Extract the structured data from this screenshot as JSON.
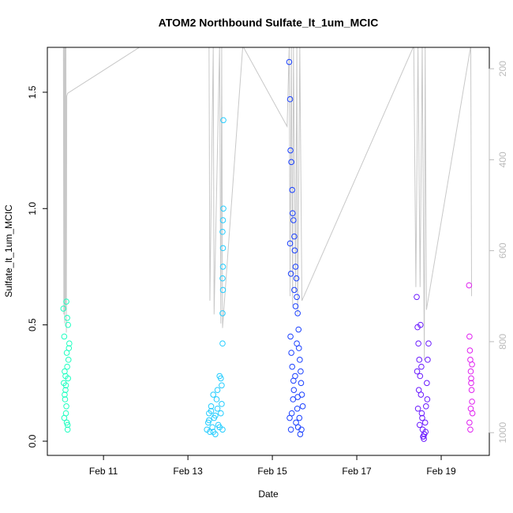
{
  "chart_data": {
    "type": "scatter",
    "title": "ATOM2 Northbound Sulfate_lt_1um_MCIC",
    "x_label": "Date",
    "y_label": "Sulfate_lt_1um_MCIC",
    "xlim": [
      9.67,
      20.14
    ],
    "xticks": [
      {
        "value": 11,
        "label": "Feb 11"
      },
      {
        "value": 13,
        "label": "Feb 13"
      },
      {
        "value": 15,
        "label": "Feb 15"
      },
      {
        "value": 17,
        "label": "Feb 17"
      },
      {
        "value": 19,
        "label": "Feb 19"
      }
    ],
    "ylim": [
      -0.061,
      1.693
    ],
    "yticks": [
      {
        "value": 0,
        "label": "0.0"
      },
      {
        "value": 0.5,
        "label": "0.5"
      },
      {
        "value": 1,
        "label": "1.0"
      },
      {
        "value": 1.5,
        "label": "1.5"
      }
    ],
    "y2lim": [
      1050,
      153
    ],
    "y2ticks": [
      200,
      400,
      600,
      800,
      1000
    ],
    "series": [
      {
        "type": "scatter",
        "color": "#1effc0",
        "x": [
          10.05,
          10.07,
          10.08,
          10.1,
          10.12,
          10.14,
          10.16,
          10.18,
          10.06,
          10.09,
          10.11,
          10.13,
          10.15,
          10.17,
          10.1,
          10.08,
          10.12,
          10.14,
          10.16,
          10.19,
          10.07,
          10.11,
          10.13,
          10.15
        ],
        "values": [
          0.57,
          0.45,
          0.3,
          0.22,
          0.6,
          0.53,
          0.5,
          0.4,
          0.25,
          0.18,
          0.12,
          0.08,
          0.05,
          0.35,
          0.28,
          0.2,
          0.15,
          0.32,
          0.27,
          0.42,
          0.1,
          0.24,
          0.38,
          0.07
        ]
      },
      {
        "type": "scatter",
        "color": "#22ccff",
        "x": [
          13.45,
          13.48,
          13.5,
          13.52,
          13.55,
          13.58,
          13.6,
          13.62,
          13.65,
          13.68,
          13.7,
          13.72,
          13.75,
          13.78,
          13.8,
          13.82,
          13.5,
          13.55,
          13.6,
          13.65,
          13.7,
          13.75,
          13.78,
          13.8,
          13.82,
          13.82,
          13.83,
          13.82,
          13.83,
          13.83,
          13.82,
          13.83,
          13.84,
          13.84
        ],
        "values": [
          0.05,
          0.08,
          0.12,
          0.04,
          0.15,
          0.06,
          0.2,
          0.1,
          0.03,
          0.18,
          0.22,
          0.07,
          0.28,
          0.12,
          0.16,
          0.05,
          0.09,
          0.13,
          0.04,
          0.11,
          0.14,
          0.06,
          0.27,
          0.24,
          0.42,
          0.55,
          0.65,
          0.7,
          0.75,
          0.83,
          0.9,
          0.95,
          1.0,
          1.38
        ]
      },
      {
        "type": "scatter",
        "color": "#1a40ff",
        "x": [
          15.4,
          15.42,
          15.43,
          15.45,
          15.47,
          15.48,
          15.5,
          15.52,
          15.53,
          15.55,
          15.57,
          15.58,
          15.6,
          15.62,
          15.63,
          15.65,
          15.67,
          15.68,
          15.7,
          15.72,
          15.41,
          15.44,
          15.46,
          15.49,
          15.51,
          15.54,
          15.56,
          15.59,
          15.61,
          15.64,
          15.66,
          15.69,
          15.43,
          15.45,
          15.47,
          15.5,
          15.52,
          15.55,
          15.58,
          15.6,
          15.42,
          15.44
        ],
        "values": [
          1.63,
          1.47,
          1.25,
          1.2,
          1.08,
          0.98,
          0.95,
          0.88,
          0.82,
          0.75,
          0.7,
          0.62,
          0.55,
          0.48,
          0.4,
          0.35,
          0.3,
          0.25,
          0.2,
          0.15,
          0.1,
          0.05,
          0.12,
          0.18,
          0.22,
          0.28,
          0.08,
          0.14,
          0.06,
          0.1,
          0.03,
          0.05,
          0.45,
          0.38,
          0.32,
          0.26,
          0.65,
          0.58,
          0.42,
          0.19,
          0.85,
          0.72
        ]
      },
      {
        "type": "scatter",
        "color": "#6a1aff",
        "x": [
          18.42,
          18.44,
          18.46,
          18.48,
          18.5,
          18.52,
          18.54,
          18.56,
          18.58,
          18.6,
          18.62,
          18.64,
          18.66,
          18.68,
          18.7,
          18.43,
          18.47,
          18.51,
          18.55,
          18.59,
          18.63,
          18.67,
          18.45,
          18.49,
          18.53,
          18.57
        ],
        "values": [
          0.62,
          0.49,
          0.42,
          0.35,
          0.28,
          0.2,
          0.12,
          0.05,
          0.02,
          0.03,
          0.08,
          0.15,
          0.25,
          0.35,
          0.42,
          0.3,
          0.22,
          0.5,
          0.1,
          0.01,
          0.04,
          0.18,
          0.14,
          0.07,
          0.32,
          0.02
        ]
      },
      {
        "type": "scatter",
        "color": "#e020f0",
        "x": [
          19.66,
          19.67,
          19.68,
          19.69,
          19.7,
          19.71,
          19.72,
          19.73,
          19.74,
          19.67,
          19.69,
          19.71,
          19.73,
          19.7
        ],
        "values": [
          0.67,
          0.45,
          0.39,
          0.35,
          0.3,
          0.27,
          0.22,
          0.17,
          0.12,
          0.08,
          0.05,
          0.25,
          0.33,
          0.14
        ]
      },
      {
        "type": "line",
        "axis": "y2",
        "color": "#c8c8c8",
        "x": [
          10.05,
          10.06,
          10.07,
          10.08,
          10.09,
          10.1,
          10.11,
          10.12,
          10.13,
          10.15,
          11.9,
          13.5,
          13.52,
          13.6,
          13.62,
          13.75,
          13.78,
          13.8,
          13.82,
          14.3,
          15.35,
          15.4,
          15.42,
          15.45,
          15.48,
          15.5,
          15.55,
          15.58,
          15.6,
          15.65,
          15.7,
          18.35,
          18.4,
          18.45,
          18.5,
          18.55,
          18.6,
          18.62,
          18.65,
          19.7,
          19.72
        ],
        "values": [
          150,
          740,
          150,
          760,
          150,
          730,
          150,
          780,
          260,
          254,
          150,
          150,
          710,
          150,
          740,
          150,
          760,
          150,
          770,
          150,
          327,
          150,
          700,
          150,
          720,
          150,
          690,
          150,
          740,
          150,
          710,
          150,
          680,
          150,
          680,
          150,
          840,
          150,
          730,
          150,
          700
        ]
      }
    ]
  }
}
